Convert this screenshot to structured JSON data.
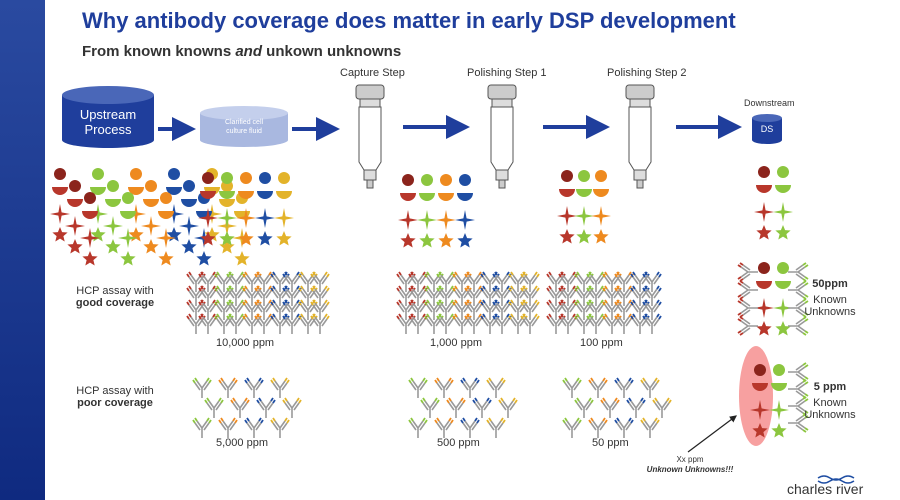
{
  "title": "Why antibody coverage does matter in early DSP development",
  "subtitle": {
    "pre": "From known knowns ",
    "em": "and",
    "post": " unkown unknowns"
  },
  "steps": {
    "upstream": [
      "Upstream",
      "Process"
    ],
    "clarified": [
      "Clarified cell",
      "culture fluid"
    ],
    "capture": "Capture Step",
    "polish1": "Polishing Step 1",
    "polish2": "Polishing Step 2",
    "downstream": "Downstream",
    "ds": "DS"
  },
  "good": {
    "label1": "HCP assay with",
    "label2": "good coverage",
    "ppm": [
      "10,000 ppm",
      "1,000 ppm",
      "100 ppm"
    ],
    "final_ppm": "50ppm",
    "final_label": [
      "Known",
      "Unknowns"
    ]
  },
  "poor": {
    "label1": "HCP assay with",
    "label2": "poor coverage",
    "ppm": [
      "5,000 ppm",
      "500 ppm",
      "50 ppm"
    ],
    "final_ppm": "5 ppm",
    "final_label": [
      "Known",
      "Unknowns"
    ]
  },
  "unknown": {
    "ppm": "Xx ppm",
    "label": "Unknown Unknowns!!!"
  },
  "logo": "charles river",
  "colors": {
    "brand": "#1f3e9c",
    "red": "#b8372b",
    "darkred": "#8b241c",
    "green": "#8cc63f",
    "orange": "#ee8a1f",
    "blue": "#1f4ea3",
    "yellow": "#e3b32a",
    "highlight": "#f7a0a0"
  }
}
